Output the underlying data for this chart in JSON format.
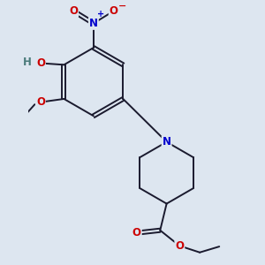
{
  "bg_color": "#dde6f0",
  "bond_color": "#1a1a2e",
  "atom_colors": {
    "O": "#cc0000",
    "N": "#0000cc",
    "H": "#4a7a7a",
    "C": "#1a1a2e"
  },
  "bond_width": 1.4,
  "font_size_atom": 8.5
}
